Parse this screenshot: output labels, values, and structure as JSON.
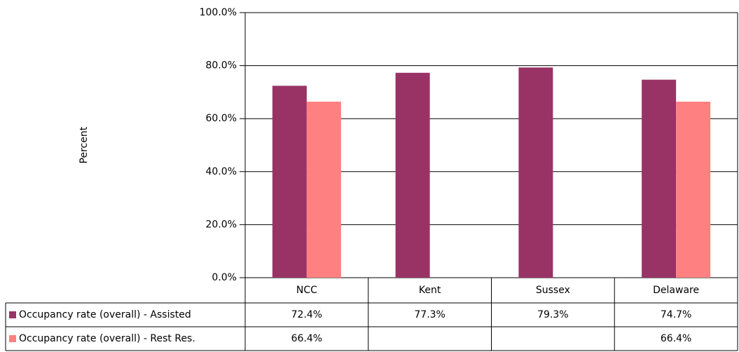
{
  "chart_data": {
    "type": "bar",
    "y_label": "Percent",
    "categories": [
      "NCC",
      "Kent",
      "Sussex",
      "Delaware"
    ],
    "series": [
      {
        "name": "Occupancy rate (overall) - Assisted",
        "color": "#993366",
        "values": [
          72.4,
          77.3,
          79.3,
          74.7
        ],
        "value_labels": [
          "72.4%",
          "77.3%",
          "79.3%",
          "74.7%"
        ]
      },
      {
        "name": "Occupancy rate (overall) - Rest Res.",
        "color": "#ff8080",
        "values": [
          66.4,
          null,
          null,
          66.4
        ],
        "value_labels": [
          "66.4%",
          null,
          null,
          "66.4%"
        ]
      }
    ],
    "ylim": [
      0,
      100
    ],
    "yticks": [
      {
        "value": 0,
        "label": "0.0%"
      },
      {
        "value": 20,
        "label": "20.0%"
      },
      {
        "value": 40,
        "label": "40.0%"
      },
      {
        "value": 60,
        "label": "60.0%"
      },
      {
        "value": 80,
        "label": "80.0%"
      },
      {
        "value": 100,
        "label": "100.0%"
      }
    ],
    "grid": true
  }
}
